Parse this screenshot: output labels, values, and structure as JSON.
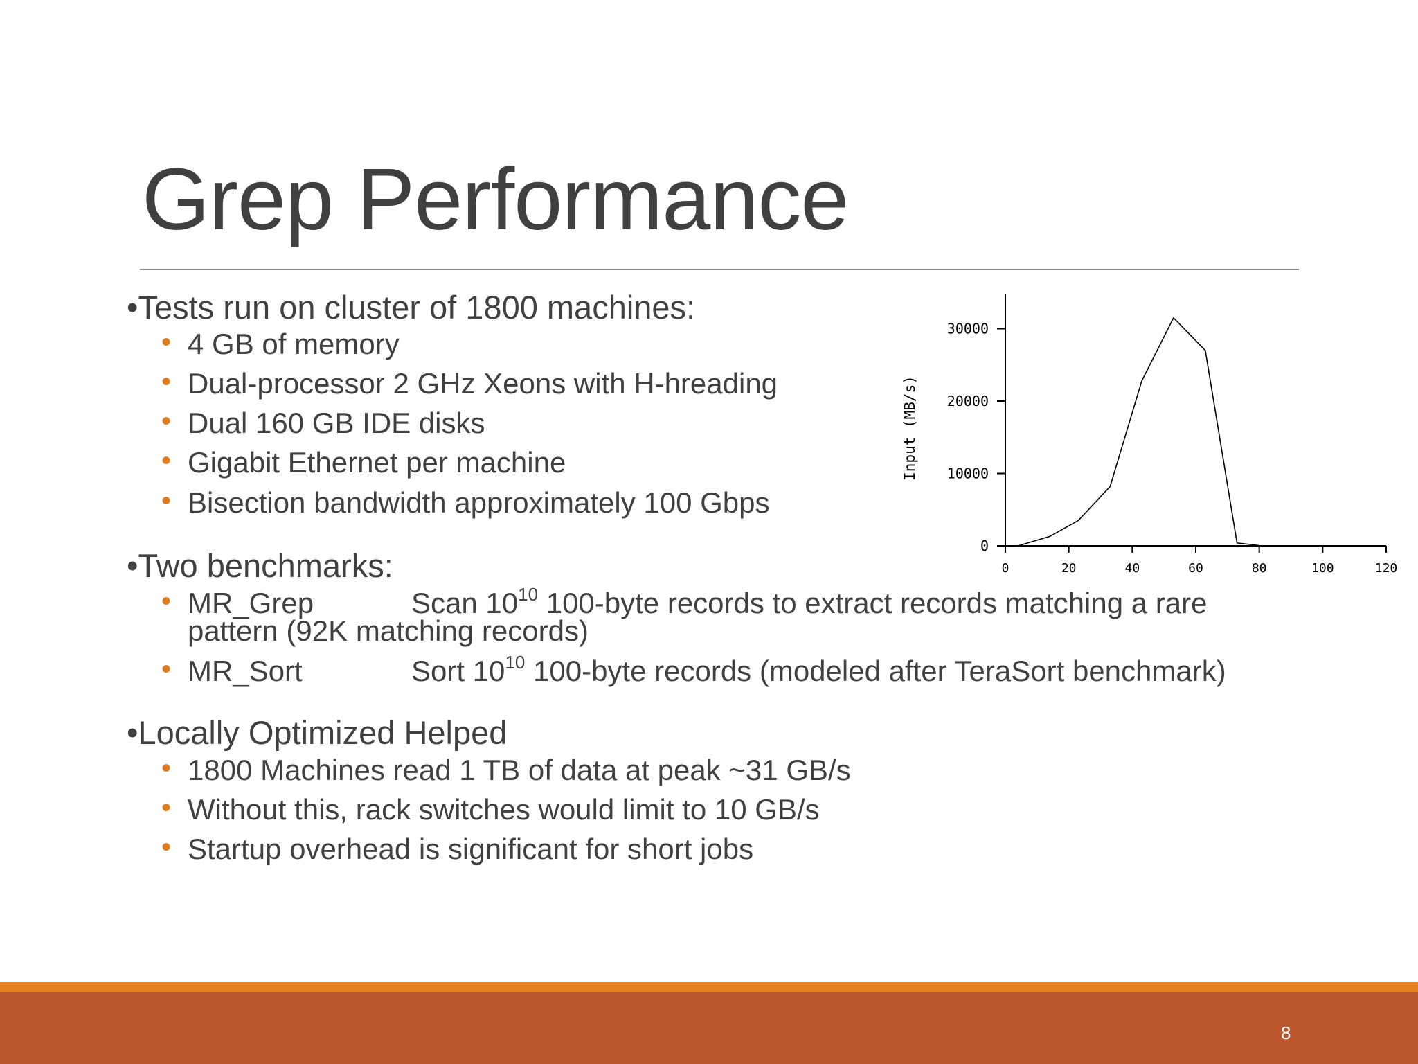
{
  "slide": {
    "title": "Grep Performance",
    "page_number": "8"
  },
  "sections": [
    {
      "heading": "Tests run on cluster of 1800 machines:",
      "items": [
        "4 GB of memory",
        "Dual-processor 2 GHz Xeons with H-hreading",
        "Dual 160 GB IDE disks",
        "Gigabit Ethernet per machine",
        "Bisection bandwidth approximately 100 Gbps"
      ]
    },
    {
      "heading": "Two benchmarks:",
      "benchmarks": [
        {
          "name": "MR_Grep",
          "desc_pre": "Scan 10",
          "desc_sup": "10",
          "desc_post": " 100-byte records to extract records matching a rare",
          "desc_cont": "pattern (92K matching records)"
        },
        {
          "name": "MR_Sort",
          "desc_pre": "Sort 10",
          "desc_sup": "10",
          "desc_post": " 100-byte records (modeled after TeraSort benchmark)"
        }
      ]
    },
    {
      "heading": "Locally Optimized Helped",
      "items": [
        "1800 Machines read 1 TB of data at peak ~31 GB/s",
        "Without this, rack switches would limit to 10 GB/s",
        "Startup overhead is significant for short jobs"
      ]
    }
  ],
  "chart_data": {
    "type": "line",
    "title": "",
    "xlabel": "",
    "ylabel": "Input (MB/s)",
    "xlim": [
      0,
      120
    ],
    "ylim": [
      0,
      35000
    ],
    "xticks": [
      0,
      20,
      40,
      60,
      80,
      100,
      120
    ],
    "yticks": [
      0,
      10000,
      20000,
      30000
    ],
    "grid": false,
    "series": [
      {
        "x": [
          4,
          14,
          23,
          33,
          43,
          53,
          63,
          73,
          80
        ],
        "y": [
          0,
          1300,
          3500,
          8200,
          22800,
          31500,
          27000,
          400,
          50
        ]
      }
    ]
  },
  "colors": {
    "accent_orange": "#e6821e",
    "footer": "#bc562c",
    "bullet": "#e07b20",
    "text": "#404040"
  }
}
